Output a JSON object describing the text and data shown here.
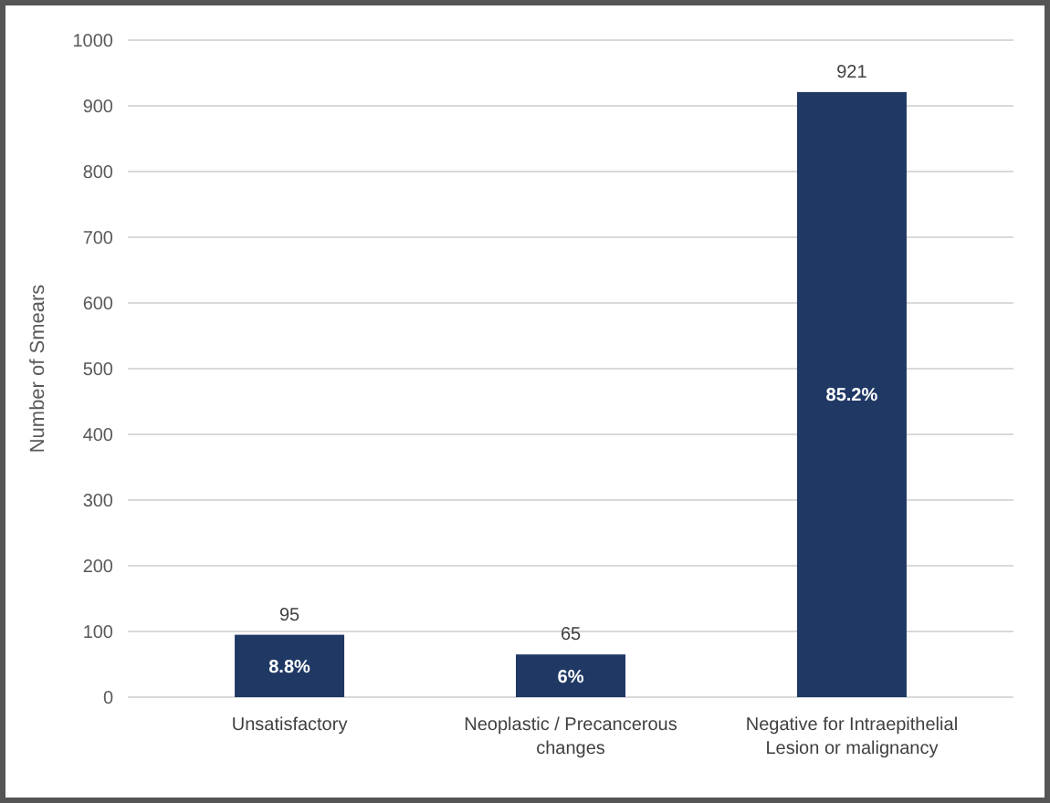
{
  "chart_data": {
    "type": "bar",
    "ylabel": "Number of Smears",
    "categories": [
      "Unsatisfactory",
      "Neoplastic / Precancerous changes",
      "Negative for Intraepithelial Lesion or malignancy"
    ],
    "values": [
      95,
      65,
      921
    ],
    "color": "#1f3864",
    "ylim": [
      0,
      1000
    ],
    "yticks": [
      0,
      100,
      200,
      300,
      400,
      500,
      600,
      700,
      800,
      900,
      1000
    ],
    "grid": "y",
    "data_labels": true,
    "annotations": [
      "8.8%",
      "6%",
      "85.2%"
    ]
  }
}
